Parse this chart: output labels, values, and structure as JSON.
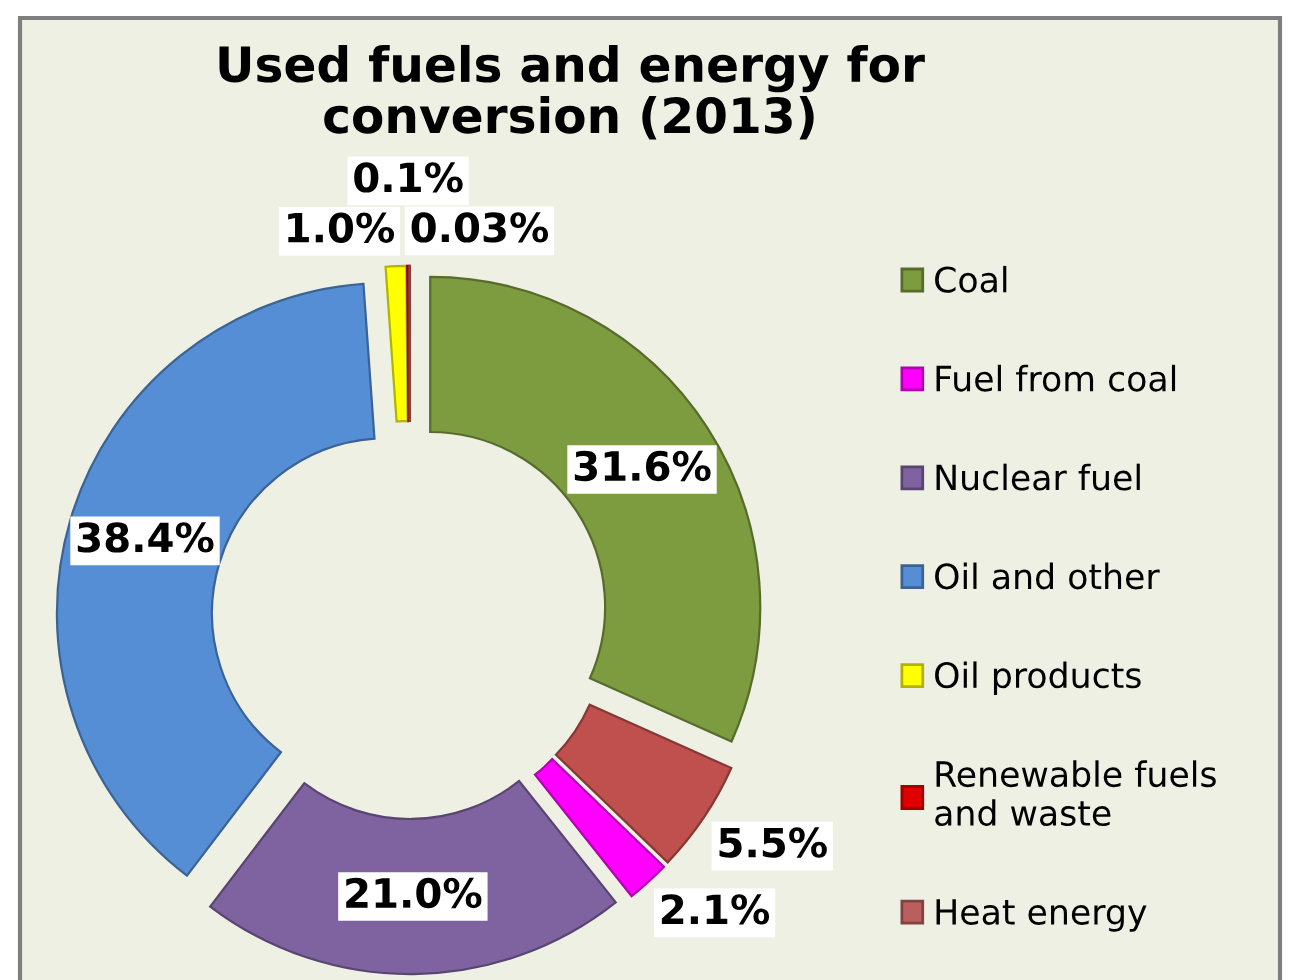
{
  "chart_data": {
    "type": "donut",
    "title": "Used fuels and energy for conversion (2013)",
    "categories": [
      "Coal",
      null,
      "Fuel from coal",
      "Nuclear fuel",
      "Oil and other",
      "Oil products",
      "Renewable fuels and waste",
      "Heat energy"
    ],
    "values": [
      31.6,
      5.5,
      2.1,
      21.0,
      38.4,
      1.0,
      0.1,
      0.03
    ],
    "colors": [
      "#7d9b3f",
      "#c0504d",
      "#ff00ff",
      "#7f63a1",
      "#558ed5",
      "#ffff00",
      "#e00000",
      "#b9605e"
    ],
    "value_labels": [
      "31.6%",
      "5.5%",
      "2.1%",
      "21.0%",
      "38.4%",
      "1.0%",
      "0.1%",
      "0.03%"
    ],
    "legend": "right"
  }
}
